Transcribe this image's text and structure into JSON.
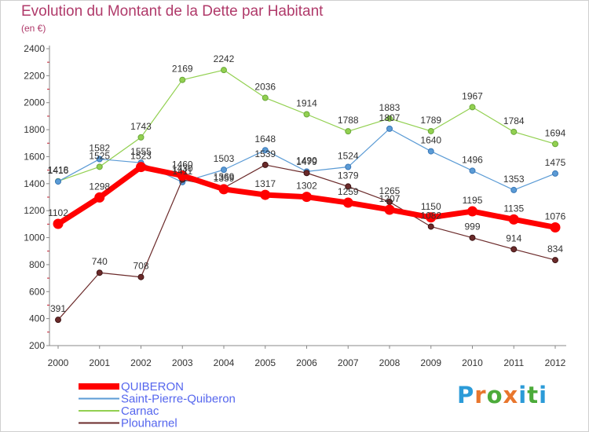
{
  "title": "Evolution du Montant de la Dette par Habitant",
  "subtitle": "(en €)",
  "logo": {
    "text": "Proxiti",
    "colors": [
      "#2b9bd8",
      "#e8762d",
      "#4cab3a",
      "#e8762d",
      "#2b9bd8",
      "#4cab3a",
      "#2b9bd8"
    ]
  },
  "chart_data": {
    "type": "line",
    "title": "Evolution du Montant de la Dette par Habitant",
    "subtitle": "(en €)",
    "x": [
      "2000",
      "2001",
      "2002",
      "2003",
      "2004",
      "2005",
      "2006",
      "2007",
      "2008",
      "2009",
      "2010",
      "2011",
      "2012"
    ],
    "ylim": [
      200,
      2400
    ],
    "yticks": [
      200,
      400,
      600,
      800,
      1000,
      1200,
      1400,
      1600,
      1800,
      2000,
      2200,
      2400
    ],
    "grid": false,
    "legend": "bottom-left",
    "series": [
      {
        "name": "QUIBERON",
        "color": "#ff0000",
        "values": [
          1102,
          1298,
          1523,
          1460,
          1359,
          1317,
          1302,
          1259,
          1207,
          1150,
          1195,
          1135,
          1076
        ]
      },
      {
        "name": "Saint-Pierre-Quiberon",
        "color": "#5b9bd5",
        "values": [
          1416,
          1582,
          1555,
          1411,
          1503,
          1648,
          1490,
          1524,
          1807,
          1640,
          1496,
          1353,
          1475
        ]
      },
      {
        "name": "Carnac",
        "color": "#92d050",
        "values": [
          1418,
          1525,
          1743,
          2169,
          2242,
          2036,
          1914,
          1788,
          1883,
          1789,
          1967,
          1784,
          1694
        ]
      },
      {
        "name": "Plouharnel",
        "color": "#6b2a2a",
        "values": [
          391,
          740,
          708,
          1430,
          1369,
          1539,
          1479,
          1379,
          1265,
          1082,
          999,
          914,
          834
        ]
      }
    ]
  }
}
